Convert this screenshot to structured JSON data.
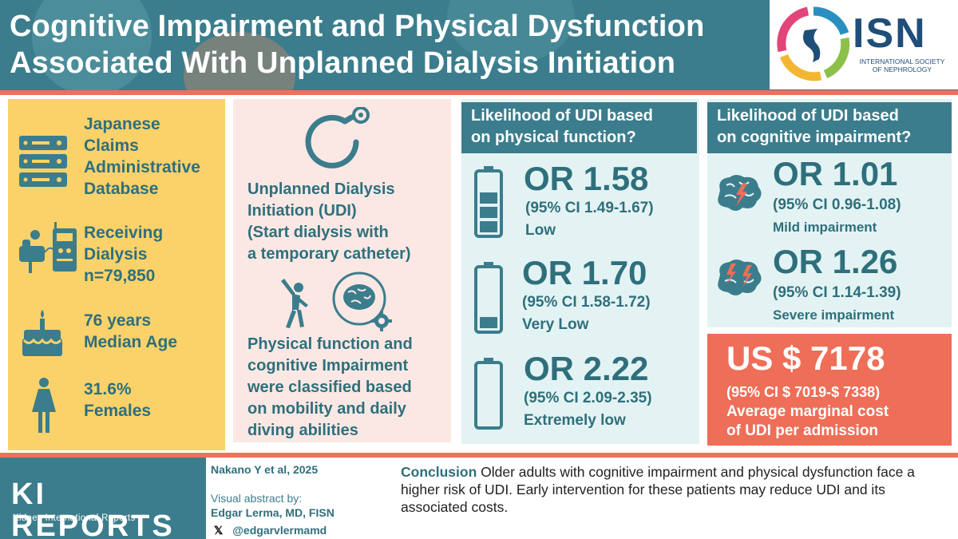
{
  "header": {
    "title_line1": "Cognitive Impairment and Physical Dysfunction",
    "title_line2": "Associated With Unplanned Dialysis Initiation",
    "logo_text": "ISN",
    "logo_sub_line1": "INTERNATIONAL SOCIETY",
    "logo_sub_line2": "OF NEPHROLOGY"
  },
  "study": {
    "database_lines": [
      "Japanese",
      "Claims",
      "Administrative",
      "Database"
    ],
    "dialysis_lines": [
      "Receiving",
      "Dialysis",
      "n=79,850"
    ],
    "age_lines": [
      "76 years",
      "Median Age"
    ],
    "female_lines": [
      "31.6%",
      "Females"
    ]
  },
  "definition": {
    "udi_lines": [
      "Unplanned Dialysis",
      "Initiation (UDI)",
      "(Start dialysis with",
      "a temporary catheter)"
    ],
    "classification_lines": [
      "Physical function and",
      "cognitive Impairment",
      "were classified based",
      "on mobility and daily",
      "diving abilities"
    ]
  },
  "physical": {
    "heading_line1": "Likelihood of UDI based",
    "heading_line2": "on physical function?",
    "items": [
      {
        "or": "OR 1.58",
        "ci": "(95%  CI 1.49-1.67)",
        "label": "Low",
        "battery_level": 0.75
      },
      {
        "or": "OR 1.70",
        "ci": "(95%  CI 1.58-1.72)",
        "label": "Very Low",
        "battery_level": 0.25
      },
      {
        "or": "OR 2.22",
        "ci": "(95%  CI 2.09-2.35)",
        "label": "Extremely low",
        "battery_level": 0
      }
    ]
  },
  "cognitive": {
    "heading_line1": "Likelihood of UDI based",
    "heading_line2": "on cognitive impairment?",
    "items": [
      {
        "or": "OR 1.01",
        "ci": "(95%  CI 0.96-1.08)",
        "label": "Mild impairment"
      },
      {
        "or": "OR 1.26",
        "ci": "(95%  CI 1.14-1.39)",
        "label": "Severe impairment"
      }
    ]
  },
  "cost": {
    "amount": "US $ 7178",
    "ci": "(95%  CI $ 7019-$ 7338)",
    "desc_line1": "Average marginal cost",
    "desc_line2": "of UDI per admission"
  },
  "footer": {
    "journal": "KI REPORTS",
    "journal_sub": "Kidney International Reports",
    "citation": "Nakano Y et al, 2025",
    "visual_by": "Visual abstract by:",
    "author": "Edgar Lerma, MD, FISN",
    "x_glyph": "𝕏",
    "handle": "@edgarvlermamd",
    "conclusion_head": "Conclusion",
    "conclusion_text": " Older adults with cognitive impairment and physical dysfunction face a higher risk of UDI. Early intervention for these patients may reduce UDI and its associated costs."
  },
  "colors": {
    "teal": "#3b7d8c",
    "coral": "#ee6e58",
    "yellow": "#fbd26a",
    "pink": "#fbe8e4",
    "light_teal": "#e3f3f3"
  }
}
